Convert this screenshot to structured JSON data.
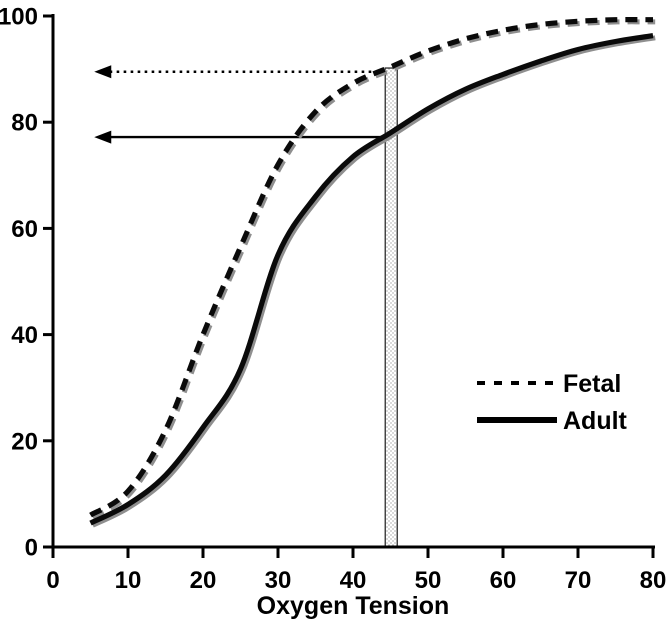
{
  "colors": {
    "background": "#ffffff",
    "axis": "#000000",
    "text": "#000000",
    "curve": "#0a0a0a",
    "curve_shadow": "#8f8f8f",
    "band_dot": "#8a8a8a",
    "band_border": "#3a3a3a"
  },
  "chart_data": {
    "type": "line",
    "title": "",
    "xlabel": "Oxygen Tension",
    "ylabel": "",
    "xlim": [
      0,
      80
    ],
    "ylim": [
      0,
      100
    ],
    "x_ticks": [
      0,
      10,
      20,
      30,
      40,
      50,
      60,
      70,
      80
    ],
    "y_ticks": [
      0,
      20,
      40,
      60,
      80,
      100
    ],
    "grid": false,
    "legend_position": "inside-right",
    "legend": [
      {
        "label": "Fetal",
        "style": "dashed"
      },
      {
        "label": "Adult",
        "style": "solid"
      }
    ],
    "series": [
      {
        "name": "Fetal",
        "style": "dashed",
        "points": [
          [
            5,
            6
          ],
          [
            10,
            10.5
          ],
          [
            15,
            22
          ],
          [
            20,
            40
          ],
          [
            25,
            56.5
          ],
          [
            30,
            72
          ],
          [
            35,
            82
          ],
          [
            40,
            87.3
          ],
          [
            45,
            90.4
          ],
          [
            50,
            93.4
          ],
          [
            55,
            95.7
          ],
          [
            60,
            97.3
          ],
          [
            65,
            98.4
          ],
          [
            70,
            99
          ],
          [
            75,
            99.3
          ],
          [
            80,
            99.3
          ]
        ]
      },
      {
        "name": "Adult",
        "style": "solid",
        "points": [
          [
            5,
            4.5
          ],
          [
            10,
            8
          ],
          [
            15,
            13.5
          ],
          [
            20,
            22.5
          ],
          [
            25,
            33.5
          ],
          [
            30,
            55
          ],
          [
            35,
            66
          ],
          [
            40,
            73.5
          ],
          [
            45,
            78
          ],
          [
            50,
            82.5
          ],
          [
            55,
            86.2
          ],
          [
            60,
            89
          ],
          [
            65,
            91.5
          ],
          [
            70,
            93.7
          ],
          [
            75,
            95.2
          ],
          [
            80,
            96.3
          ]
        ]
      }
    ],
    "annotations": {
      "shaded_band": {
        "x_range": [
          44.3,
          45.9
        ],
        "y_range": [
          0,
          90.2
        ]
      },
      "arrows": [
        {
          "style": "dotted",
          "y": 89.5,
          "x_from": 44.3,
          "x_to": 5.5,
          "refers_to": "Fetal"
        },
        {
          "style": "solid",
          "y": 77.2,
          "x_from": 45.2,
          "x_to": 5.5,
          "refers_to": "Adult"
        }
      ]
    }
  }
}
